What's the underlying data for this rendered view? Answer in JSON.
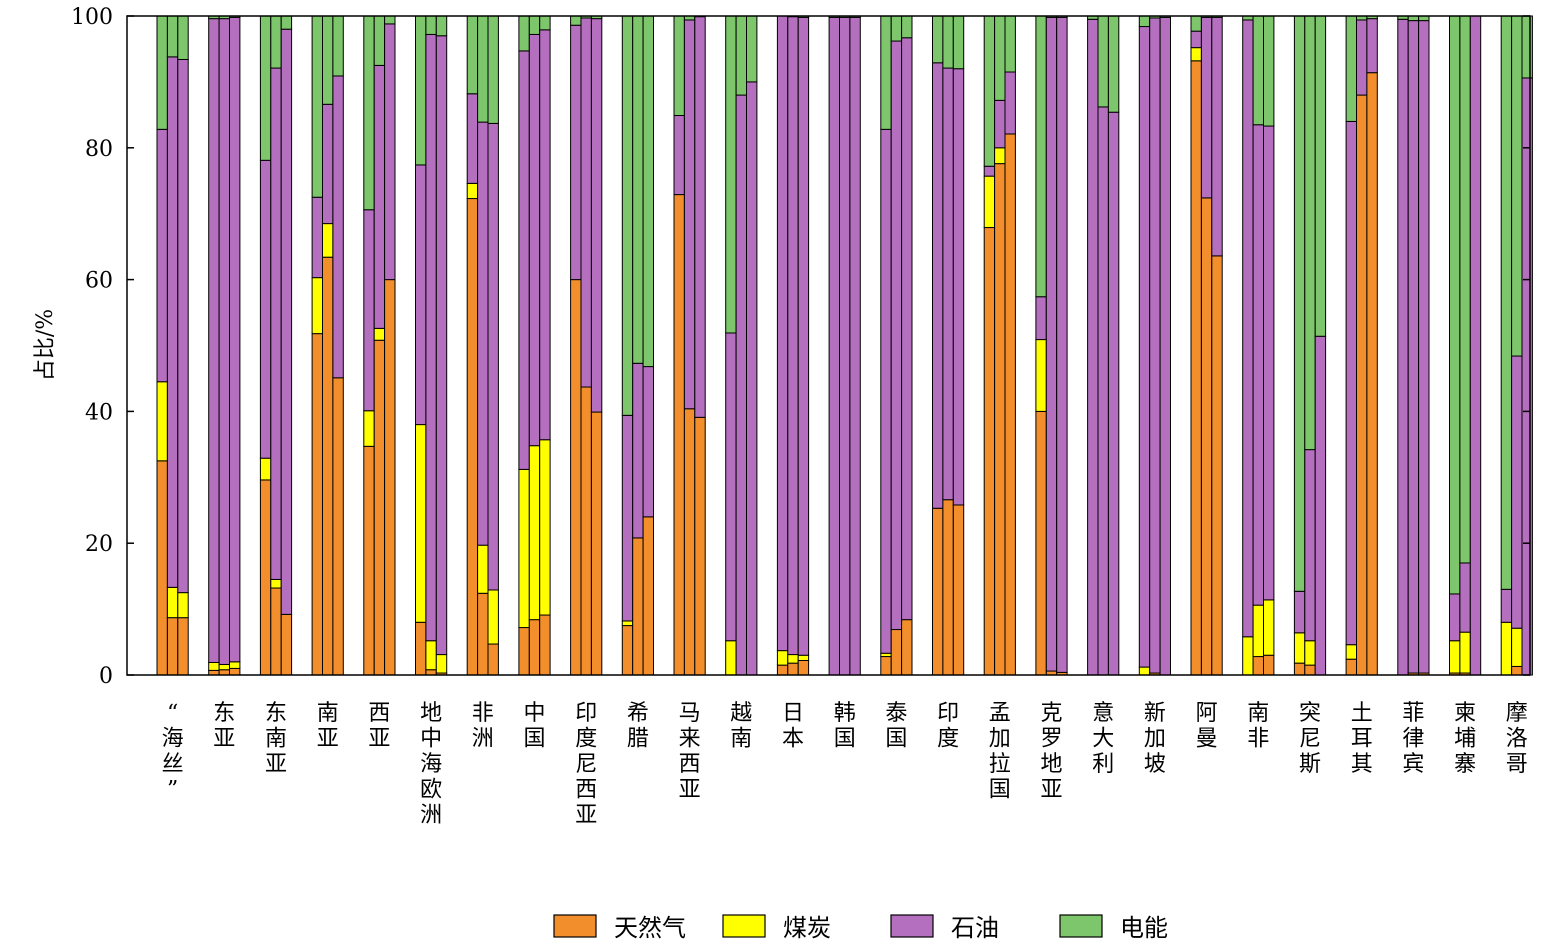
{
  "chart_data": {
    "type": "bar",
    "stacked": true,
    "bars_per_category": 3,
    "ylabel": "占比/%",
    "ylim": [
      0,
      100
    ],
    "yticks": [
      0,
      20,
      40,
      60,
      80,
      100
    ],
    "grid": false,
    "legend_position": "bottom",
    "categories": [
      "“海丝”",
      "东亚",
      "东南亚",
      "南亚",
      "西亚",
      "地中海欧洲",
      "非洲",
      "中国",
      "印度尼西亚",
      "希腊",
      "马来西亚",
      "越南",
      "日本",
      "韩国",
      "泰国",
      "印度",
      "孟加拉国",
      "克罗地亚",
      "意大利",
      "新加坡",
      "阿曼",
      "南非",
      "突尼斯",
      "土耳其",
      "菲律宾",
      "柬埔寨",
      "摩洛哥"
    ],
    "series": [
      {
        "name": "天然气",
        "color": "#F28E2B",
        "values": [
          [
            32.5,
            8.7,
            8.7
          ],
          [
            0.7,
            0.8,
            1.0
          ],
          [
            29.6,
            13.2,
            9.2
          ],
          [
            51.8,
            63.4,
            45.1
          ],
          [
            34.7,
            50.8,
            60.0
          ],
          [
            8.0,
            0.8,
            0.3
          ],
          [
            72.3,
            12.4,
            4.7
          ],
          [
            7.2,
            8.4,
            9.1
          ],
          [
            60.0,
            43.7,
            39.9
          ],
          [
            7.5,
            20.8,
            24.0
          ],
          [
            72.9,
            40.4,
            39.1
          ],
          [
            0.0,
            0.0,
            0.0
          ],
          [
            1.5,
            1.8,
            2.2
          ],
          [
            0.0,
            0.0,
            0.0
          ],
          [
            2.8,
            6.9,
            8.4
          ],
          [
            25.3,
            26.6,
            25.8
          ],
          [
            67.9,
            77.6,
            82.1
          ],
          [
            40.0,
            0.6,
            0.4
          ],
          [
            0.0,
            0.0,
            0.0
          ],
          [
            0.0,
            0.3,
            0.0
          ],
          [
            93.2,
            72.4,
            63.6
          ],
          [
            0.0,
            2.8,
            3.0
          ],
          [
            1.8,
            1.5,
            0.0
          ],
          [
            2.4,
            88.0,
            91.4
          ],
          [
            0.0,
            0.3,
            0.3
          ],
          [
            0.3,
            0.3,
            0.0
          ],
          [
            0.0,
            1.3,
            0.0
          ]
        ]
      },
      {
        "name": "煤炭",
        "color": "#FFFF00",
        "values": [
          [
            12.0,
            4.6,
            3.8
          ],
          [
            1.2,
            0.8,
            1.0
          ],
          [
            3.3,
            1.3,
            0.0
          ],
          [
            8.5,
            5.1,
            0.0
          ],
          [
            5.4,
            1.8,
            0.0
          ],
          [
            30.0,
            4.4,
            2.8
          ],
          [
            2.3,
            7.3,
            8.2
          ],
          [
            24.0,
            26.4,
            26.6
          ],
          [
            0.0,
            0.0,
            0.0
          ],
          [
            0.7,
            0.0,
            0.0
          ],
          [
            0.0,
            0.0,
            0.0
          ],
          [
            5.2,
            0.0,
            0.0
          ],
          [
            2.2,
            1.3,
            0.8
          ],
          [
            0.0,
            0.0,
            0.0
          ],
          [
            0.5,
            0.0,
            0.0
          ],
          [
            0.0,
            0.0,
            0.0
          ],
          [
            7.8,
            2.4,
            0.0
          ],
          [
            10.9,
            0.0,
            0.0
          ],
          [
            0.0,
            0.0,
            0.0
          ],
          [
            1.2,
            0.0,
            0.0
          ],
          [
            2.0,
            0.0,
            0.0
          ],
          [
            5.8,
            7.8,
            8.4
          ],
          [
            4.6,
            3.7,
            0.0
          ],
          [
            2.2,
            0.0,
            0.0
          ],
          [
            0.0,
            0.0,
            0.0
          ],
          [
            4.9,
            6.2,
            0.0
          ],
          [
            8.0,
            5.8,
            0.0
          ]
        ]
      },
      {
        "name": "石油",
        "color": "#B56FBF",
        "values": [
          [
            38.3,
            80.5,
            80.9
          ],
          [
            97.7,
            98.0,
            97.8
          ],
          [
            45.2,
            77.6,
            88.8
          ],
          [
            12.2,
            18.1,
            45.8
          ],
          [
            30.5,
            39.9,
            38.8
          ],
          [
            39.4,
            92.0,
            93.9
          ],
          [
            13.6,
            64.2,
            70.8
          ],
          [
            63.5,
            62.4,
            62.2
          ],
          [
            38.6,
            56.0,
            59.7
          ],
          [
            31.2,
            26.5,
            22.8
          ],
          [
            12.0,
            59.0,
            60.8
          ],
          [
            46.7,
            88.0,
            90.0
          ],
          [
            96.3,
            96.8,
            96.8
          ],
          [
            99.8,
            99.8,
            99.8
          ],
          [
            79.5,
            89.3,
            88.3
          ],
          [
            67.6,
            65.5,
            66.2
          ],
          [
            1.5,
            7.2,
            9.4
          ],
          [
            6.5,
            99.2,
            99.4
          ],
          [
            99.5,
            86.2,
            85.4
          ],
          [
            97.2,
            99.4,
            99.8
          ],
          [
            2.5,
            27.4,
            36.2
          ],
          [
            93.6,
            72.9,
            71.9
          ],
          [
            6.3,
            29.0,
            51.4
          ],
          [
            79.4,
            11.4,
            8.2
          ],
          [
            99.5,
            99.0,
            99.0
          ],
          [
            7.1,
            10.5,
            100.0
          ],
          [
            5.0,
            41.3,
            90.6
          ]
        ]
      },
      {
        "name": "电能",
        "color": "#7DC66B",
        "values": [
          [
            17.2,
            6.2,
            6.6
          ],
          [
            0.4,
            0.4,
            0.2
          ],
          [
            21.9,
            7.9,
            2.0
          ],
          [
            27.5,
            13.4,
            9.1
          ],
          [
            29.4,
            7.5,
            1.2
          ],
          [
            22.6,
            2.8,
            3.0
          ],
          [
            11.8,
            16.1,
            16.3
          ],
          [
            5.3,
            2.8,
            2.1
          ],
          [
            1.4,
            0.3,
            0.4
          ],
          [
            60.6,
            52.7,
            53.2
          ],
          [
            15.1,
            0.6,
            0.1
          ],
          [
            48.1,
            12.0,
            10.0
          ],
          [
            0.0,
            0.1,
            0.2
          ],
          [
            0.2,
            0.2,
            0.2
          ],
          [
            17.2,
            3.8,
            3.3
          ],
          [
            7.1,
            7.9,
            8.0
          ],
          [
            22.8,
            12.8,
            8.5
          ],
          [
            42.6,
            0.2,
            0.2
          ],
          [
            0.5,
            13.8,
            14.6
          ],
          [
            1.6,
            0.3,
            0.2
          ],
          [
            2.3,
            0.2,
            0.2
          ],
          [
            0.6,
            16.5,
            16.7
          ],
          [
            87.3,
            65.8,
            48.6
          ],
          [
            16.0,
            0.6,
            0.4
          ],
          [
            0.5,
            0.7,
            0.7
          ],
          [
            87.7,
            83.0,
            0.0
          ],
          [
            87.0,
            51.6,
            9.4
          ]
        ]
      }
    ]
  }
}
